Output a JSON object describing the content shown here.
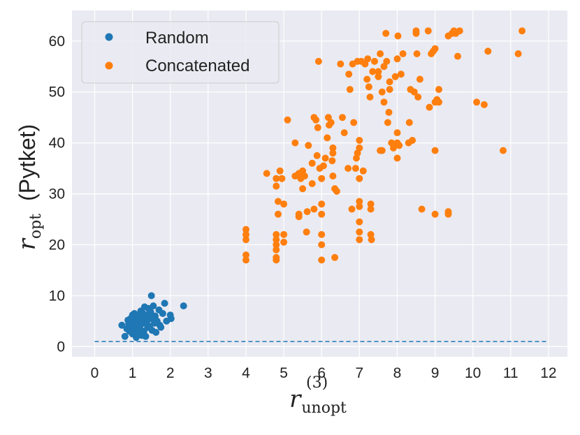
{
  "chart_data": {
    "type": "scatter",
    "xlabel": {
      "base": "r",
      "subscript": "unopt",
      "superscript": "(3)"
    },
    "ylabel": {
      "base": "r",
      "subscript": "opt",
      "suffix": "(Pytket)"
    },
    "xlim": [
      -0.6,
      12.5
    ],
    "ylim": [
      -2,
      66
    ],
    "x_ticks": [
      0,
      1,
      2,
      3,
      4,
      5,
      6,
      7,
      8,
      9,
      10,
      11,
      12
    ],
    "y_ticks": [
      0,
      10,
      20,
      30,
      40,
      50,
      60
    ],
    "grid": true,
    "legend_position": "top-left",
    "reference_line": {
      "style": "dashed",
      "color": "#1f77b4",
      "x": [
        0,
        12
      ],
      "y": [
        1,
        1
      ]
    },
    "series": [
      {
        "name": "Random",
        "color": "#1f77b4",
        "points": [
          [
            0.72,
            4.2
          ],
          [
            0.8,
            2.0
          ],
          [
            0.85,
            3.5
          ],
          [
            0.88,
            5.2
          ],
          [
            0.9,
            4.5
          ],
          [
            0.92,
            3.0
          ],
          [
            0.95,
            5.5
          ],
          [
            0.98,
            4.0
          ],
          [
            1.0,
            6.2
          ],
          [
            1.0,
            2.5
          ],
          [
            1.02,
            3.8
          ],
          [
            1.05,
            5.0
          ],
          [
            1.05,
            6.5
          ],
          [
            1.08,
            4.6
          ],
          [
            1.1,
            3.2
          ],
          [
            1.1,
            1.8
          ],
          [
            1.12,
            5.8
          ],
          [
            1.15,
            4.2
          ],
          [
            1.15,
            2.8
          ],
          [
            1.18,
            6.0
          ],
          [
            1.2,
            5.0
          ],
          [
            1.2,
            3.5
          ],
          [
            1.22,
            7.0
          ],
          [
            1.25,
            4.5
          ],
          [
            1.25,
            2.2
          ],
          [
            1.28,
            6.5
          ],
          [
            1.3,
            5.5
          ],
          [
            1.3,
            3.0
          ],
          [
            1.32,
            7.8
          ],
          [
            1.35,
            4.8
          ],
          [
            1.35,
            2.0
          ],
          [
            1.38,
            6.2
          ],
          [
            1.4,
            5.2
          ],
          [
            1.4,
            3.8
          ],
          [
            1.42,
            7.5
          ],
          [
            1.45,
            4.0
          ],
          [
            1.48,
            6.8
          ],
          [
            1.5,
            10.0
          ],
          [
            1.5,
            5.5
          ],
          [
            1.52,
            3.2
          ],
          [
            1.55,
            8.0
          ],
          [
            1.58,
            4.6
          ],
          [
            1.6,
            6.0
          ],
          [
            1.62,
            2.8
          ],
          [
            1.65,
            5.0
          ],
          [
            1.7,
            7.2
          ],
          [
            1.72,
            4.2
          ],
          [
            1.75,
            3.8
          ],
          [
            1.8,
            6.5
          ],
          [
            1.85,
            8.5
          ],
          [
            1.9,
            5.0
          ],
          [
            2.0,
            6.2
          ],
          [
            2.02,
            5.5
          ],
          [
            2.35,
            8.0
          ]
        ]
      },
      {
        "name": "Concatenated",
        "color": "#ff7f0e",
        "points": [
          [
            4.0,
            23
          ],
          [
            4.0,
            22
          ],
          [
            4.0,
            21
          ],
          [
            4.0,
            18
          ],
          [
            4.0,
            17
          ],
          [
            4.55,
            34
          ],
          [
            4.8,
            22
          ],
          [
            4.8,
            21
          ],
          [
            4.8,
            20
          ],
          [
            4.8,
            19
          ],
          [
            4.8,
            17.5
          ],
          [
            4.8,
            17
          ],
          [
            4.8,
            31.5
          ],
          [
            4.8,
            33
          ],
          [
            4.85,
            26
          ],
          [
            4.85,
            28.5
          ],
          [
            4.9,
            34.5
          ],
          [
            4.95,
            33
          ],
          [
            5.0,
            28
          ],
          [
            5.0,
            22
          ],
          [
            5.0,
            20.5
          ],
          [
            5.1,
            44.5
          ],
          [
            5.3,
            33.5
          ],
          [
            5.3,
            40
          ],
          [
            5.4,
            34
          ],
          [
            5.4,
            26
          ],
          [
            5.4,
            25.5
          ],
          [
            5.45,
            33
          ],
          [
            5.5,
            34.5
          ],
          [
            5.5,
            31
          ],
          [
            5.55,
            33.5
          ],
          [
            5.6,
            22.5
          ],
          [
            5.62,
            26.5
          ],
          [
            5.65,
            39.5
          ],
          [
            5.75,
            32
          ],
          [
            5.75,
            36
          ],
          [
            5.8,
            45
          ],
          [
            5.8,
            27
          ],
          [
            5.85,
            44.5
          ],
          [
            5.88,
            37.5
          ],
          [
            5.9,
            43
          ],
          [
            5.92,
            56
          ],
          [
            5.95,
            35
          ],
          [
            6.0,
            28
          ],
          [
            6.0,
            26
          ],
          [
            6.0,
            22
          ],
          [
            6.0,
            20
          ],
          [
            6.0,
            17
          ],
          [
            6.0,
            33
          ],
          [
            6.05,
            35.5
          ],
          [
            6.1,
            37
          ],
          [
            6.15,
            41
          ],
          [
            6.18,
            45
          ],
          [
            6.2,
            43.5
          ],
          [
            6.25,
            44
          ],
          [
            6.28,
            36.5
          ],
          [
            6.3,
            38
          ],
          [
            6.3,
            39
          ],
          [
            6.3,
            33.5
          ],
          [
            6.35,
            31
          ],
          [
            6.35,
            17.5
          ],
          [
            6.4,
            30.5
          ],
          [
            6.5,
            55.5
          ],
          [
            6.55,
            45
          ],
          [
            6.6,
            42
          ],
          [
            6.7,
            35
          ],
          [
            6.72,
            53.5
          ],
          [
            6.75,
            50.5
          ],
          [
            6.8,
            27
          ],
          [
            6.82,
            55.5
          ],
          [
            6.85,
            44
          ],
          [
            6.9,
            35
          ],
          [
            6.92,
            37
          ],
          [
            6.95,
            38
          ],
          [
            6.95,
            56
          ],
          [
            7.0,
            40.5
          ],
          [
            7.0,
            39
          ],
          [
            7.0,
            33
          ],
          [
            7.0,
            28.5
          ],
          [
            7.0,
            27.5
          ],
          [
            7.0,
            24.5
          ],
          [
            7.0,
            22.5
          ],
          [
            7.0,
            21
          ],
          [
            7.05,
            56
          ],
          [
            7.1,
            34.5
          ],
          [
            7.15,
            55.5
          ],
          [
            7.2,
            52.5
          ],
          [
            7.22,
            56.5
          ],
          [
            7.25,
            51
          ],
          [
            7.28,
            49
          ],
          [
            7.3,
            27
          ],
          [
            7.3,
            28
          ],
          [
            7.3,
            22
          ],
          [
            7.32,
            21
          ],
          [
            7.35,
            54
          ],
          [
            7.4,
            56
          ],
          [
            7.5,
            53
          ],
          [
            7.5,
            54
          ],
          [
            7.55,
            38.5
          ],
          [
            7.55,
            57.5
          ],
          [
            7.6,
            50
          ],
          [
            7.6,
            38.5
          ],
          [
            7.65,
            48
          ],
          [
            7.65,
            55
          ],
          [
            7.7,
            61.5
          ],
          [
            7.72,
            56
          ],
          [
            7.75,
            44
          ],
          [
            7.78,
            46
          ],
          [
            7.8,
            52
          ],
          [
            7.8,
            50.5
          ],
          [
            7.85,
            40
          ],
          [
            7.9,
            39
          ],
          [
            7.95,
            53
          ],
          [
            8.0,
            56.5
          ],
          [
            8.0,
            42
          ],
          [
            8.0,
            40
          ],
          [
            8.0,
            37
          ],
          [
            8.02,
            61
          ],
          [
            8.05,
            39.5
          ],
          [
            8.1,
            53.5
          ],
          [
            8.15,
            57.5
          ],
          [
            8.3,
            40
          ],
          [
            8.32,
            44
          ],
          [
            8.35,
            50.5
          ],
          [
            8.4,
            40.5
          ],
          [
            8.45,
            50
          ],
          [
            8.5,
            61.5
          ],
          [
            8.5,
            62
          ],
          [
            8.52,
            57.5
          ],
          [
            8.55,
            49
          ],
          [
            8.6,
            52.5
          ],
          [
            8.65,
            27
          ],
          [
            8.82,
            62
          ],
          [
            8.85,
            47
          ],
          [
            8.9,
            57.5
          ],
          [
            8.95,
            58
          ],
          [
            9.0,
            58.5
          ],
          [
            9.0,
            48
          ],
          [
            9.0,
            38.5
          ],
          [
            9.0,
            26
          ],
          [
            9.05,
            48.5
          ],
          [
            9.1,
            50.5
          ],
          [
            9.1,
            48
          ],
          [
            9.35,
            26
          ],
          [
            9.35,
            26.5
          ],
          [
            9.35,
            61
          ],
          [
            9.45,
            61.5
          ],
          [
            9.5,
            62
          ],
          [
            9.55,
            61.5
          ],
          [
            9.6,
            57
          ],
          [
            9.65,
            62
          ],
          [
            10.1,
            48
          ],
          [
            10.3,
            47.5
          ],
          [
            10.4,
            58
          ],
          [
            10.8,
            38.5
          ],
          [
            11.2,
            57.5
          ],
          [
            11.3,
            62
          ]
        ]
      }
    ]
  }
}
